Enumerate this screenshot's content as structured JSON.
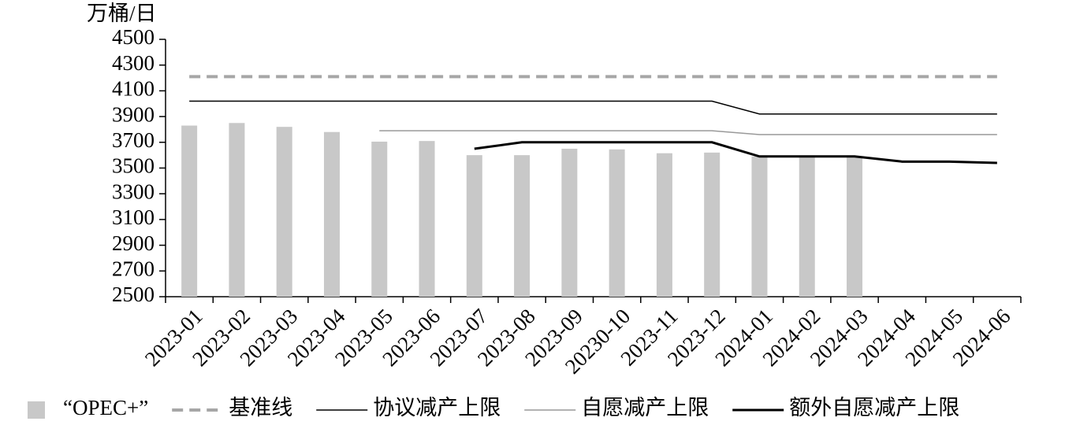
{
  "chart_data": {
    "type": "bar-line",
    "y_label": "万桶/日",
    "categories": [
      "2023-01",
      "2023-02",
      "2023-03",
      "2023-04",
      "2023-05",
      "2023-06",
      "2023-07",
      "2023-08",
      "2023-09",
      "20230-10",
      "2023-11",
      "2023-12",
      "2024-01",
      "2024-02",
      "2024-03",
      "2024-04",
      "2024-05",
      "2024-06"
    ],
    "ylim": [
      2500,
      4500
    ],
    "yticks": [
      2500,
      2700,
      2900,
      3100,
      3300,
      3500,
      3700,
      3900,
      4100,
      4300,
      4500
    ],
    "series": [
      {
        "name": "“OPEC+”",
        "type": "bar",
        "color": "#c8c8c8",
        "values": [
          3830,
          3850,
          3820,
          3780,
          3705,
          3710,
          3600,
          3600,
          3650,
          3645,
          3615,
          3620,
          3590,
          3590,
          3590,
          null,
          null,
          null
        ]
      },
      {
        "name": "基准线",
        "type": "line",
        "color": "#a6a6a6",
        "line_style": "dashed",
        "line_width": 4,
        "values": [
          4210,
          4210,
          4210,
          4210,
          4210,
          4210,
          4210,
          4210,
          4210,
          4210,
          4210,
          4210,
          4210,
          4210,
          4210,
          4210,
          4210,
          4210
        ]
      },
      {
        "name": "协议减产上限",
        "type": "line",
        "color": "#000000",
        "line_style": "solid",
        "line_width": 1.5,
        "values": [
          4020,
          4020,
          4020,
          4020,
          4020,
          4020,
          4020,
          4020,
          4020,
          4020,
          4020,
          4020,
          3920,
          3920,
          3920,
          3920,
          3920,
          3920
        ]
      },
      {
        "name": "自愿减产上限",
        "type": "line",
        "color": "#999999",
        "line_style": "solid",
        "line_width": 1.5,
        "values": [
          null,
          null,
          null,
          null,
          3790,
          3790,
          3790,
          3790,
          3790,
          3790,
          3790,
          3790,
          3760,
          3760,
          3760,
          3760,
          3760,
          3760
        ]
      },
      {
        "name": "额外自愿减产上限",
        "type": "line",
        "color": "#000000",
        "line_style": "solid",
        "line_width": 3,
        "values": [
          null,
          null,
          null,
          null,
          null,
          null,
          3650,
          3700,
          3700,
          3700,
          3700,
          3700,
          3590,
          3590,
          3590,
          3550,
          3550,
          3540
        ]
      }
    ]
  }
}
